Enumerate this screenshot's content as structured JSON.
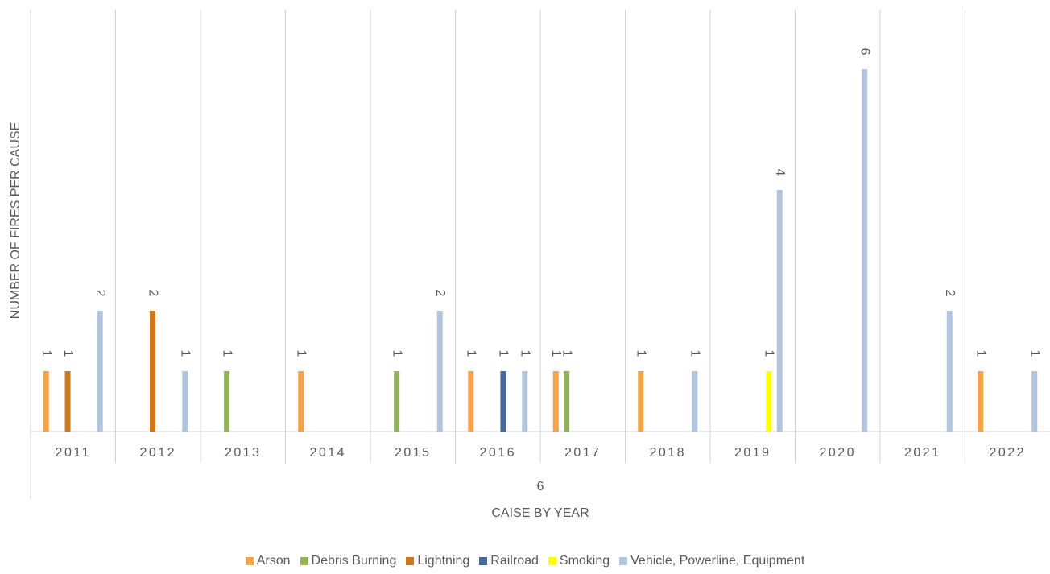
{
  "chart_data": {
    "type": "bar",
    "categories": [
      "2011",
      "2012",
      "2013",
      "2014",
      "2015",
      "2016",
      "2017",
      "2018",
      "2019",
      "2020",
      "2021",
      "2022"
    ],
    "series": [
      {
        "name": "Arson",
        "color": "#f4a448",
        "values": [
          1,
          null,
          null,
          1,
          null,
          1,
          1,
          1,
          null,
          null,
          null,
          1
        ]
      },
      {
        "name": "Debris Burning",
        "color": "#93b05a",
        "values": [
          null,
          null,
          1,
          null,
          1,
          null,
          1,
          null,
          null,
          null,
          null,
          null
        ]
      },
      {
        "name": "Lightning",
        "color": "#cc781c",
        "values": [
          1,
          2,
          null,
          null,
          null,
          null,
          null,
          null,
          null,
          null,
          null,
          null
        ]
      },
      {
        "name": "Railroad",
        "color": "#46699b",
        "values": [
          null,
          null,
          null,
          null,
          null,
          1,
          null,
          null,
          null,
          null,
          null,
          null
        ]
      },
      {
        "name": "Smoking",
        "color": "#ffff00",
        "values": [
          null,
          null,
          null,
          null,
          null,
          null,
          null,
          null,
          1,
          null,
          null,
          null
        ]
      },
      {
        "name": "Vehicle, Powerline, Equipment",
        "color": "#b1c5de",
        "values": [
          2,
          1,
          null,
          null,
          2,
          1,
          null,
          1,
          4,
          6,
          2,
          1
        ]
      }
    ],
    "ylim": [
      0,
      7
    ],
    "y_label": "NUMBER OF FIRES PER CAUSE",
    "x_label": "CAISE BY YEAR",
    "x_note": "6"
  }
}
